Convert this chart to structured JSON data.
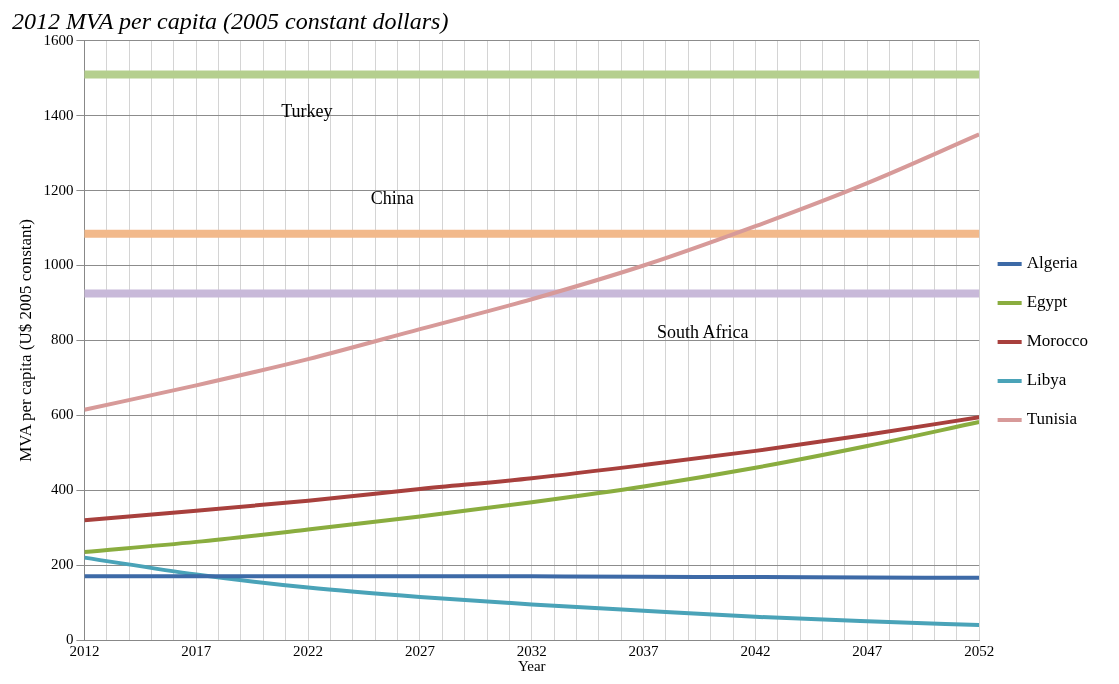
{
  "chart_data": {
    "type": "line",
    "title": "2012 MVA per capita (2005 constant dollars)",
    "xlabel": "Year",
    "ylabel": "MVA per capita (U$ 2005 constant)",
    "x": [
      2012,
      2017,
      2022,
      2027,
      2032,
      2037,
      2042,
      2047,
      2052
    ],
    "series": [
      {
        "name": "Algeria",
        "color": "#3d6aa7",
        "values": [
          170,
          170,
          170,
          170,
          170,
          169,
          168,
          167,
          166
        ]
      },
      {
        "name": "Egypt",
        "color": "#8aad3f",
        "values": [
          235,
          262,
          295,
          330,
          368,
          410,
          460,
          518,
          582
        ]
      },
      {
        "name": "Morocco",
        "color": "#a8403d",
        "values": [
          320,
          345,
          372,
          403,
          432,
          467,
          505,
          548,
          595
        ]
      },
      {
        "name": "Libya",
        "color": "#4aa3b8",
        "values": [
          220,
          175,
          140,
          115,
          95,
          78,
          62,
          50,
          40
        ]
      },
      {
        "name": "Tunisia",
        "color": "#d79a99",
        "values": [
          615,
          680,
          750,
          830,
          910,
          1000,
          1105,
          1220,
          1350
        ]
      }
    ],
    "xlim": [
      2012,
      2052
    ],
    "xticks": [
      2012,
      {
        "value": 2013,
        "label": null
      },
      {
        "value": 2014,
        "label": null
      },
      {
        "value": 2015,
        "label": null
      },
      {
        "value": 2016,
        "label": null
      },
      2017,
      {
        "value": 2018,
        "label": null
      },
      {
        "value": 2019,
        "label": null
      },
      {
        "value": 2020,
        "label": null
      },
      {
        "value": 2021,
        "label": null
      },
      2022,
      {
        "value": 2023,
        "label": null
      },
      {
        "value": 2024,
        "label": null
      },
      {
        "value": 2025,
        "label": null
      },
      {
        "value": 2026,
        "label": null
      },
      2027,
      {
        "value": 2028,
        "label": null
      },
      {
        "value": 2029,
        "label": null
      },
      {
        "value": 2030,
        "label": null
      },
      {
        "value": 2031,
        "label": null
      },
      2032,
      {
        "value": 2033,
        "label": null
      },
      {
        "value": 2034,
        "label": null
      },
      {
        "value": 2035,
        "label": null
      },
      {
        "value": 2036,
        "label": null
      },
      2037,
      {
        "value": 2038,
        "label": null
      },
      {
        "value": 2039,
        "label": null
      },
      {
        "value": 2040,
        "label": null
      },
      {
        "value": 2041,
        "label": null
      },
      2042,
      {
        "value": 2043,
        "label": null
      },
      {
        "value": 2044,
        "label": null
      },
      {
        "value": 2045,
        "label": null
      },
      {
        "value": 2046,
        "label": null
      },
      2047,
      {
        "value": 2048,
        "label": null
      },
      {
        "value": 2049,
        "label": null
      },
      {
        "value": 2050,
        "label": null
      },
      {
        "value": 2051,
        "label": null
      },
      2052
    ],
    "ylim": [
      0,
      1600
    ],
    "yticks": [
      0,
      200,
      400,
      600,
      800,
      1000,
      1200,
      1400,
      1600
    ],
    "ref_lines": [
      {
        "axis": "y",
        "value": 1510,
        "label": "Turkey",
        "color": "#b5cf8e"
      },
      {
        "axis": "y",
        "value": 1085,
        "label": "China",
        "color": "#f2b98b"
      },
      {
        "axis": "y",
        "value": 925,
        "label": "South Africa",
        "color": "#c8b9d9"
      }
    ],
    "grid": true,
    "legend": "right",
    "marker": "none",
    "line_style": "solid"
  }
}
